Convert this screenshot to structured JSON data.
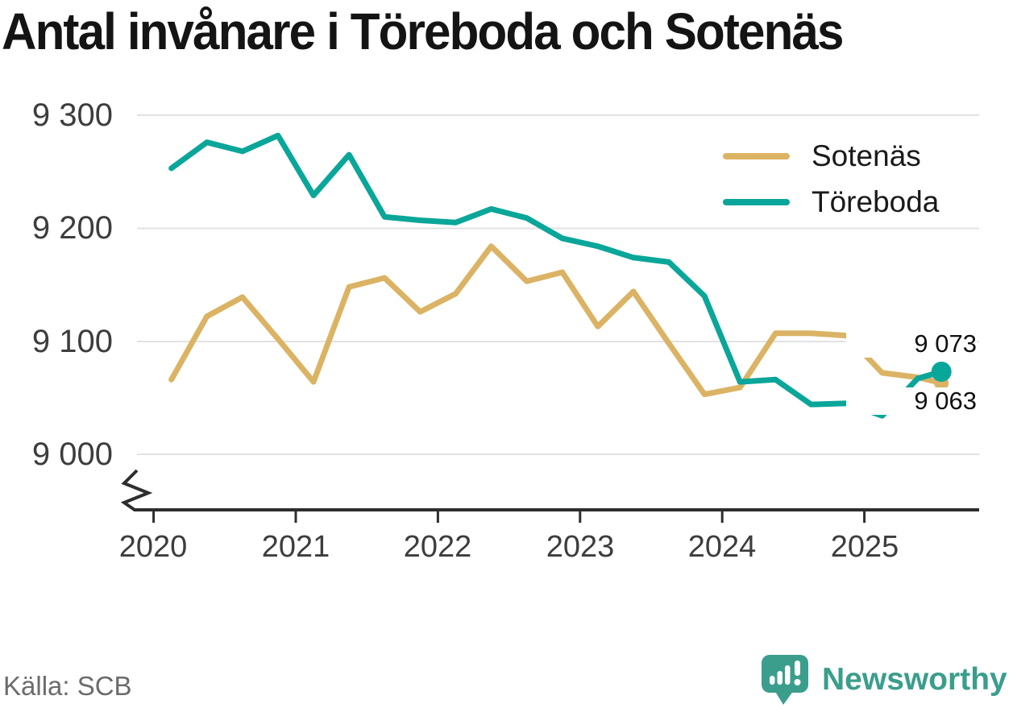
{
  "title": "Antal invånare i Töreboda och Sotenäs",
  "source": "Källa: SCB",
  "branding": {
    "name": "Newsworthy",
    "color": "#3b9e8c"
  },
  "colors": {
    "sotenas": "#dbb364",
    "toreboda": "#0aa69a",
    "axis": "#2e2e2e",
    "grid": "#e2e2e2",
    "tick_text": "#3d3d3d",
    "title_text": "#141414",
    "source_text": "#6b6b6b"
  },
  "legend": {
    "items": [
      {
        "label": "Sotenäs"
      },
      {
        "label": "Töreboda"
      }
    ]
  },
  "end_labels": {
    "toreboda": "9 073",
    "sotenas": "9 063"
  },
  "y_axis": {
    "ticks": [
      "9 300",
      "9 200",
      "9 100",
      "9 000"
    ],
    "tick_values": [
      9300,
      9200,
      9100,
      9000
    ],
    "broken_axis": true
  },
  "x_axis": {
    "ticks": [
      "2020",
      "2021",
      "2022",
      "2023",
      "2024",
      "2025"
    ],
    "tick_values": [
      2020,
      2021,
      2022,
      2023,
      2024,
      2025
    ]
  },
  "chart_data": {
    "type": "line",
    "title": "Antal invånare i Töreboda och Sotenäs",
    "xlabel": "",
    "ylabel": "",
    "xlim": [
      2019.88,
      2025.81
    ],
    "ylim": [
      8960,
      9310
    ],
    "grid": "horizontal",
    "legend_position": "top-right",
    "x": [
      2020.125,
      2020.375,
      2020.625,
      2020.875,
      2021.125,
      2021.375,
      2021.625,
      2021.875,
      2022.125,
      2022.375,
      2022.625,
      2022.875,
      2023.125,
      2023.375,
      2023.625,
      2023.875,
      2024.125,
      2024.375,
      2024.625,
      2024.875,
      2025.125,
      2025.375,
      2025.542
    ],
    "series": [
      {
        "name": "Sotenäs",
        "color": "#dbb364",
        "end_label": "9 063",
        "end_value": 9063,
        "values": [
          9066,
          9122,
          9139,
          9102,
          9064,
          9148,
          9156,
          9126,
          9142,
          9184,
          9153,
          9161,
          9113,
          9144,
          9098,
          9053,
          9059,
          9107,
          9107,
          9105,
          9072,
          9068,
          9063
        ]
      },
      {
        "name": "Töreboda",
        "color": "#0aa69a",
        "end_label": "9 073",
        "end_value": 9073,
        "values": [
          9253,
          9276,
          9268,
          9282,
          9229,
          9265,
          9210,
          9207,
          9205,
          9217,
          9209,
          9191,
          9184,
          9174,
          9170,
          9140,
          9064,
          9066,
          9044,
          9045,
          9034,
          9067,
          9073
        ]
      }
    ]
  }
}
